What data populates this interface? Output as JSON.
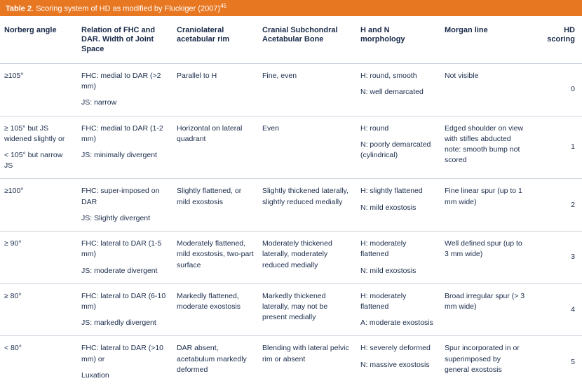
{
  "colors": {
    "header_bg": "#e87722",
    "header_text": "#ffffff",
    "body_text": "#1a2b4a",
    "border": "#cfd5de",
    "bg": "#ffffff"
  },
  "title": {
    "label": "Table 2",
    "caption": ".  Scoring system of HD as modified by Fluckiger (2007)",
    "ref": "45"
  },
  "columns": [
    "Norberg angle",
    "Relation of FHC and DAR. Width of Joint Space",
    "Craniolateral acetabular rim",
    "Cranial Subchondral Acetabular Bone",
    "H and N morphology",
    "Morgan line",
    "HD scoring"
  ],
  "rows": [
    {
      "norberg": [
        "≥105°"
      ],
      "relation": [
        "FHC: medial to DAR (>2 mm)",
        "JS: narrow"
      ],
      "cranio": [
        "Parallel to H"
      ],
      "subchondral": [
        "Fine, even"
      ],
      "hn": [
        "H: round, smooth",
        "N: well demarcated"
      ],
      "morgan": [
        "Not visible"
      ],
      "score": "0"
    },
    {
      "norberg": [
        "≥ 105° but JS widened slightly     or",
        "< 105° but narrow JS"
      ],
      "relation": [
        "FHC: medial to DAR (1-2 mm)",
        "JS: minimally divergent"
      ],
      "cranio": [
        "Horizontal on lateral quadrant"
      ],
      "subchondral": [
        "Even"
      ],
      "hn": [
        "H: round",
        "N: poorly demarcated (cylindrical)"
      ],
      "morgan": [
        "Edged shoulder on view with stifles abducted note: smooth bump not scored"
      ],
      "score": "1"
    },
    {
      "norberg": [
        "≥100°"
      ],
      "relation": [
        "FHC: super-imposed on DAR",
        "JS: Slightly divergent"
      ],
      "cranio": [
        "Slightly flattened, or mild exostosis"
      ],
      "subchondral": [
        "Slightly thickened laterally, slightly reduced medially"
      ],
      "hn": [
        "H: slightly flattened",
        "N: mild exostosis"
      ],
      "morgan": [
        "Fine linear spur (up to 1 mm wide)"
      ],
      "score": "2"
    },
    {
      "norberg": [
        "≥ 90°"
      ],
      "relation": [
        "FHC: lateral to DAR (1-5 mm)",
        "JS: moderate divergent"
      ],
      "cranio": [
        "Moderately flattened, mild exostosis, two-part surface"
      ],
      "subchondral": [
        "Moderately thickened laterally, moderately reduced medially"
      ],
      "hn": [
        "H: moderately flattened",
        "N: mild exostosis"
      ],
      "morgan": [
        "Well defined spur (up to 3 mm wide)"
      ],
      "score": "3"
    },
    {
      "norberg": [
        "≥ 80°"
      ],
      "relation": [
        "FHC: lateral to DAR (6-10 mm)",
        "JS: markedly divergent"
      ],
      "cranio": [
        "Markedly flattened, moderate exostosis"
      ],
      "subchondral": [
        "Markedly thickened laterally, may not be present medially"
      ],
      "hn": [
        "H: moderately flattened",
        "A: moderate exostosis"
      ],
      "morgan": [
        "Broad irregular spur (> 3 mm wide)"
      ],
      "score": "4"
    },
    {
      "norberg": [
        "< 80°"
      ],
      "relation": [
        "FHC: lateral to DAR (>10 mm)    or",
        " Luxation"
      ],
      "cranio": [
        "DAR absent, acetabulum markedly deformed"
      ],
      "subchondral": [
        "Blending with lateral pelvic rim or absent"
      ],
      "hn": [
        "H: severely deformed",
        "N: massive exostosis"
      ],
      "morgan": [
        "Spur incorporated in or superimposed by general exostosis"
      ],
      "score": "5"
    }
  ]
}
